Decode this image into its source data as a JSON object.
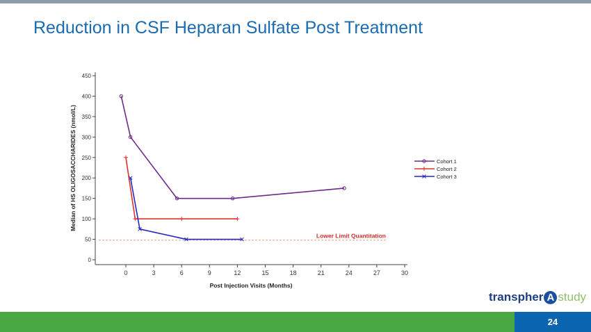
{
  "slide": {
    "title": "Reduction in CSF Heparan Sulfate Post Treatment",
    "page_number": "24"
  },
  "logo": {
    "part1": "transpher",
    "mark": "A",
    "part2": "study"
  },
  "chart_data": {
    "type": "line",
    "title": "",
    "xlabel": "Post Injection Visits (Months)",
    "ylabel": "Median of HS OLIGOSACCHARIDES (nmol/L)",
    "xlim": [
      -3.3,
      30
    ],
    "ylim": [
      -12,
      450
    ],
    "xticks": [
      0,
      3,
      6,
      9,
      12,
      15,
      18,
      21,
      24,
      27,
      30
    ],
    "yticks": [
      0,
      50,
      100,
      150,
      200,
      250,
      300,
      350,
      400,
      450
    ],
    "grid": false,
    "legend": "right",
    "series": [
      {
        "name": "Cohort 1",
        "color": "#6b2a8c",
        "marker": "circle",
        "x": [
          -0.5,
          0.5,
          5.5,
          11.5,
          23.5
        ],
        "y": [
          400,
          300,
          150,
          150,
          175
        ]
      },
      {
        "name": "Cohort 2",
        "color": "#e0302a",
        "marker": "plus",
        "x": [
          0,
          1,
          6,
          12
        ],
        "y": [
          250,
          100,
          100,
          100
        ]
      },
      {
        "name": "Cohort 3",
        "color": "#2626c0",
        "marker": "x",
        "x": [
          0.5,
          1.5,
          6.5,
          12.5
        ],
        "y": [
          200,
          75,
          50,
          50
        ]
      }
    ],
    "annotations": [
      {
        "text": "Lower Limit Quantitation",
        "y": 48,
        "color": "#d0312d",
        "line_color": "#e0a080"
      }
    ]
  }
}
